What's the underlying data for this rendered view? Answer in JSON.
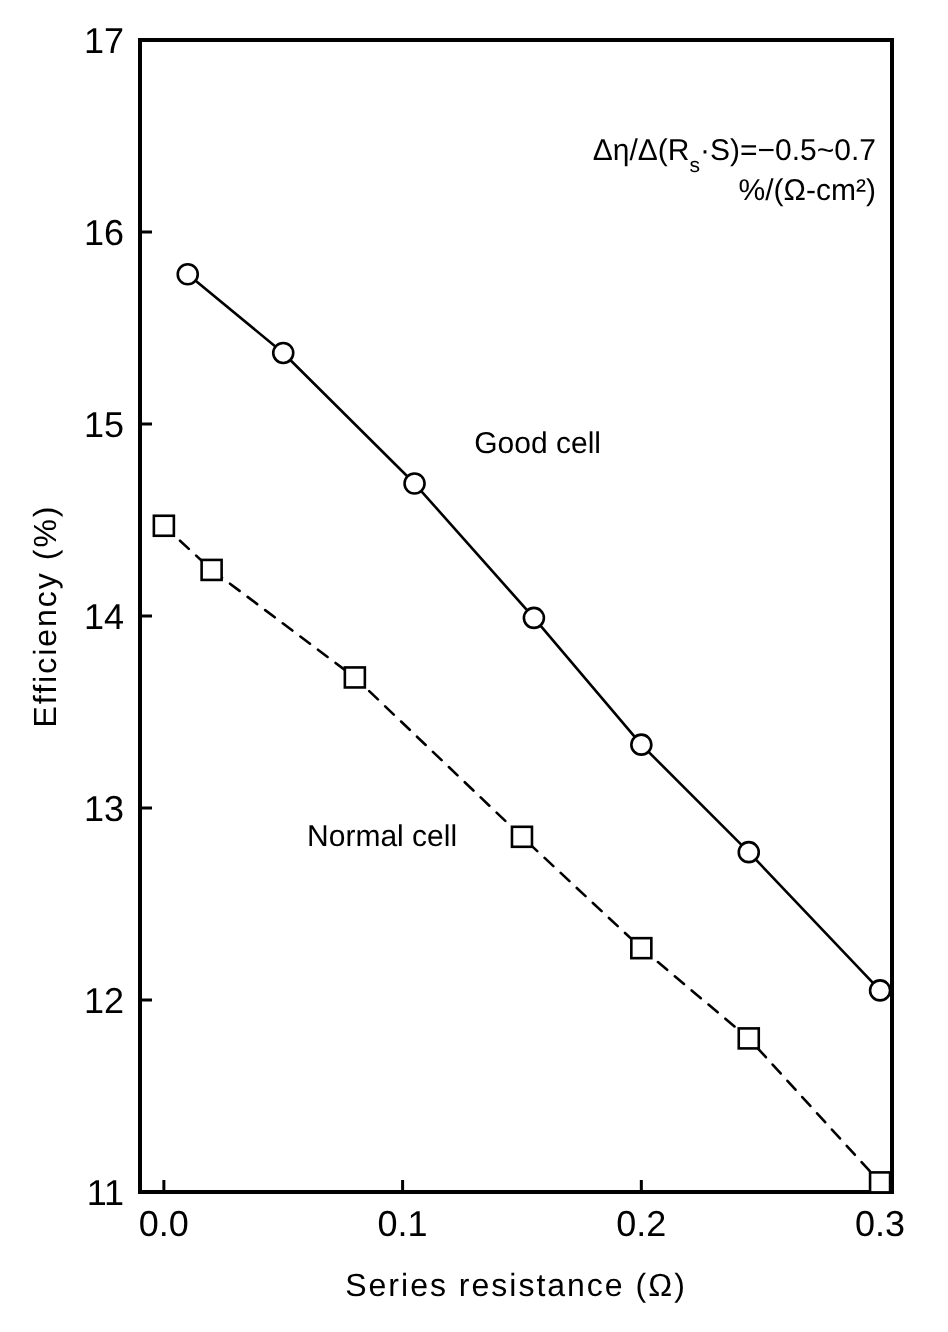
{
  "chart_data": {
    "type": "line",
    "xlabel": "Series resistance (Ω)",
    "ylabel": "Efficiency (%)",
    "xlim": [
      -0.01,
      0.305
    ],
    "ylim": [
      11,
      17
    ],
    "xticks": [
      {
        "value": 0,
        "label": "0.0"
      },
      0.1,
      0.2,
      0.3
    ],
    "yticks": [
      11,
      12,
      13,
      14,
      15,
      16,
      17
    ],
    "grid": false,
    "legend": false,
    "series": [
      {
        "name": "Good cell",
        "color": "#000000",
        "marker": "circle",
        "line_style": "solid",
        "x": [
          0.01,
          0.05,
          0.105,
          0.155,
          0.2,
          0.245,
          0.3
        ],
        "values": [
          15.78,
          15.37,
          14.69,
          13.99,
          13.33,
          12.77,
          12.05
        ]
      },
      {
        "name": "Normal cell",
        "color": "#000000",
        "marker": "square",
        "line_style": "dashed",
        "x": [
          0,
          0.02,
          0.08,
          0.15,
          0.2,
          0.245,
          0.3
        ],
        "values": [
          14.47,
          14.24,
          13.68,
          12.85,
          12.27,
          11.8,
          11.05
        ]
      }
    ],
    "annotations": [
      "Δη/Δ(R$_{s}$·S)=−0.5~0.7",
      "%/(Ω-cm²)"
    ]
  }
}
